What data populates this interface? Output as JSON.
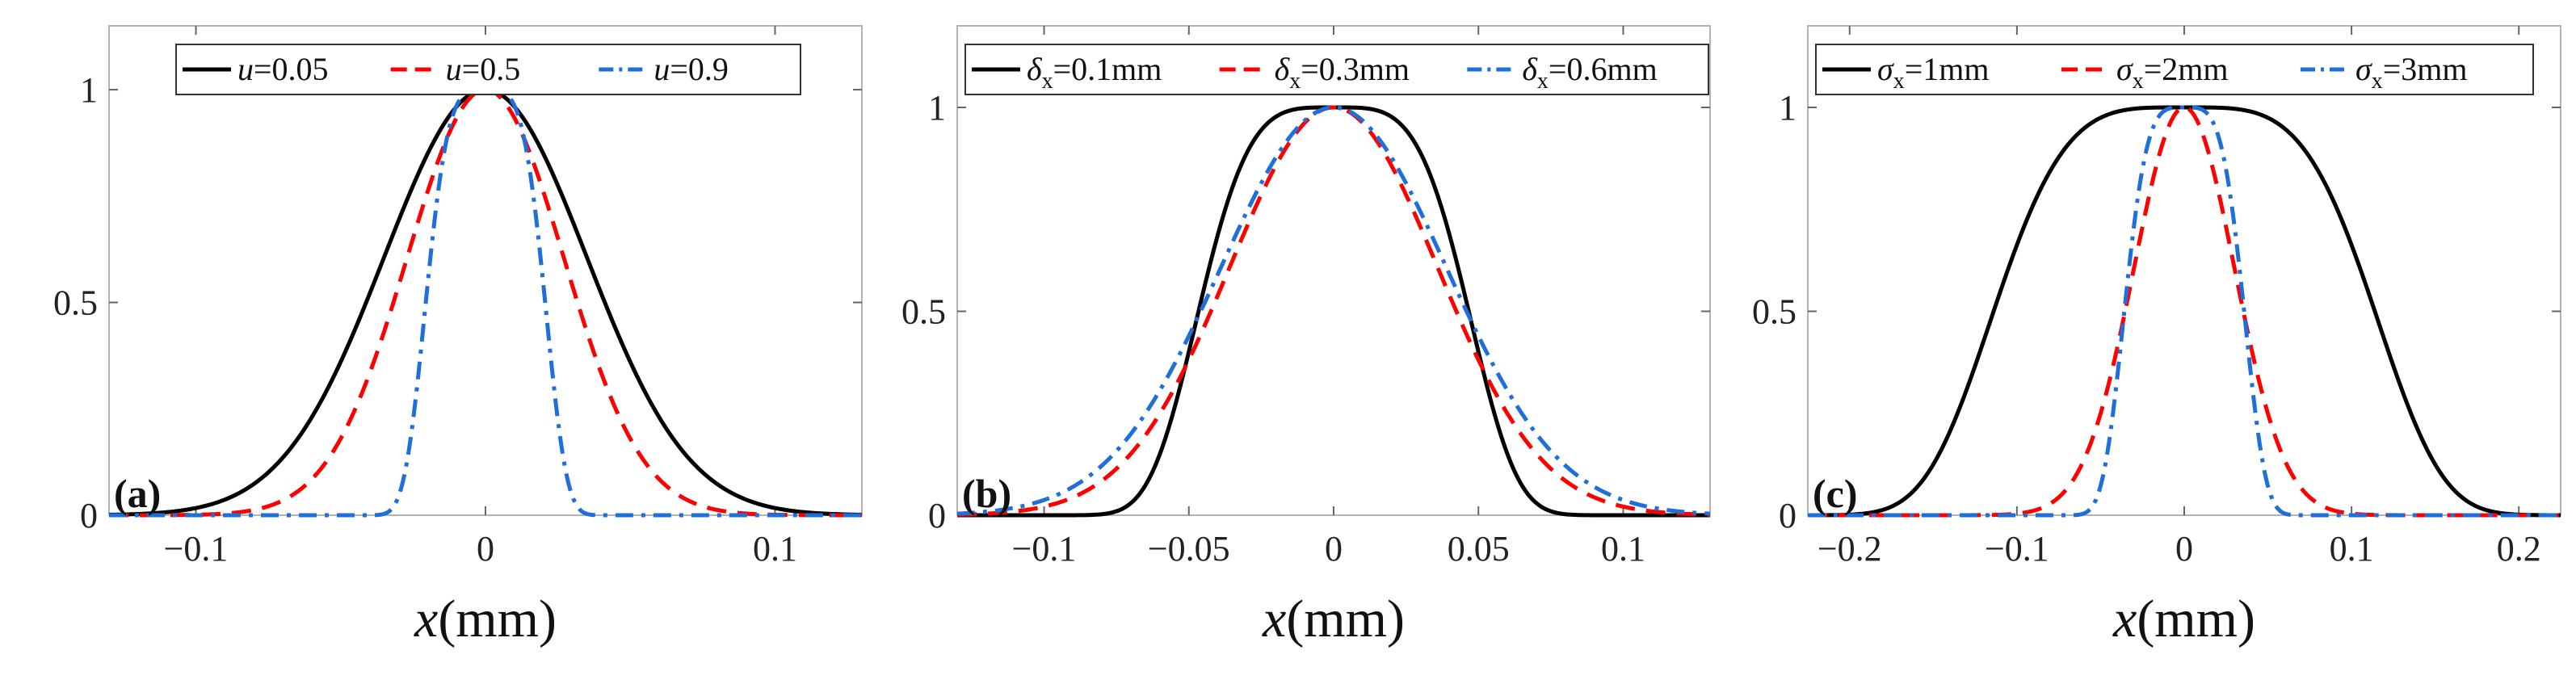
{
  "chart_data": [
    {
      "type": "line",
      "panel_label": "(a)",
      "xlabel": "x(mm)",
      "xlabel_var": "x",
      "xlabel_unit": "(mm)",
      "ylabel": "",
      "xlim": [
        -0.13,
        0.13
      ],
      "ylim": [
        0,
        1.15
      ],
      "xticks": [
        -0.1,
        0,
        0.1
      ],
      "xtick_labels": [
        "−0.1",
        "0",
        "0.1"
      ],
      "yticks": [
        0,
        0.5,
        1
      ],
      "ytick_labels": [
        "0",
        "0.5",
        "1"
      ],
      "legend_position": "top",
      "series": [
        {
          "name": "u=0.05",
          "var": "u",
          "eq": "=0.05",
          "color": "#000000",
          "style": "solid",
          "model": "gauss",
          "param": 0.035
        },
        {
          "name": "u=0.5",
          "var": "u",
          "eq": "=0.5",
          "color": "#ff0000",
          "style": "dashed",
          "model": "gauss",
          "param": 0.027
        },
        {
          "name": "u=0.9",
          "var": "u",
          "eq": "=0.9",
          "color": "#1e6fd9",
          "style": "dashdot",
          "model": "gen4",
          "param": 0.019
        }
      ]
    },
    {
      "type": "line",
      "panel_label": "(b)",
      "xlabel": "x(mm)",
      "xlabel_var": "x",
      "xlabel_unit": "(mm)",
      "ylabel": "",
      "xlim": [
        -0.13,
        0.13
      ],
      "ylim": [
        0,
        1.2
      ],
      "xticks": [
        -0.1,
        -0.05,
        0,
        0.05,
        0.1
      ],
      "xtick_labels": [
        "−0.1",
        "−0.05",
        "0",
        "0.05",
        "0.1"
      ],
      "yticks": [
        0,
        0.5,
        1
      ],
      "ytick_labels": [
        "0",
        "0.5",
        "1"
      ],
      "legend_position": "top",
      "series": [
        {
          "name": "δx=0.1mm",
          "var": "δ",
          "sub": "x",
          "eq": "=0.1mm",
          "color": "#000000",
          "style": "solid",
          "model": "gen4",
          "param": 0.043
        },
        {
          "name": "δx=0.3mm",
          "var": "δ",
          "sub": "x",
          "eq": "=0.3mm",
          "color": "#ff0000",
          "style": "dashed",
          "model": "gauss",
          "param": 0.036
        },
        {
          "name": "δx=0.6mm",
          "var": "δ",
          "sub": "x",
          "eq": "=0.6mm",
          "color": "#1e6fd9",
          "style": "dashdot",
          "model": "gauss",
          "param": 0.039
        }
      ]
    },
    {
      "type": "line",
      "panel_label": "(c)",
      "xlabel": "x(mm)",
      "xlabel_var": "x",
      "xlabel_unit": "(mm)",
      "ylabel": "",
      "xlim": [
        -0.225,
        0.225
      ],
      "ylim": [
        0,
        1.2
      ],
      "xticks": [
        -0.2,
        -0.1,
        0,
        0.1,
        0.2
      ],
      "xtick_labels": [
        "−0.2",
        "−0.1",
        "0",
        "0.1",
        "0.2"
      ],
      "yticks": [
        0,
        0.5,
        1
      ],
      "ytick_labels": [
        "0",
        "0.5",
        "1"
      ],
      "legend_position": "top",
      "series": [
        {
          "name": "σx=1mm",
          "var": "σ",
          "sub": "x",
          "eq": "=1mm",
          "color": "#000000",
          "style": "solid",
          "model": "gen4",
          "param": 0.105
        },
        {
          "name": "σx=2mm",
          "var": "σ",
          "sub": "x",
          "eq": "=2mm",
          "color": "#ff0000",
          "style": "dashed",
          "model": "gauss",
          "param": 0.03
        },
        {
          "name": "σx=3mm",
          "var": "σ",
          "sub": "x",
          "eq": "=3mm",
          "color": "#1e6fd9",
          "style": "dashdot",
          "model": "gen4",
          "param": 0.033
        }
      ]
    }
  ]
}
